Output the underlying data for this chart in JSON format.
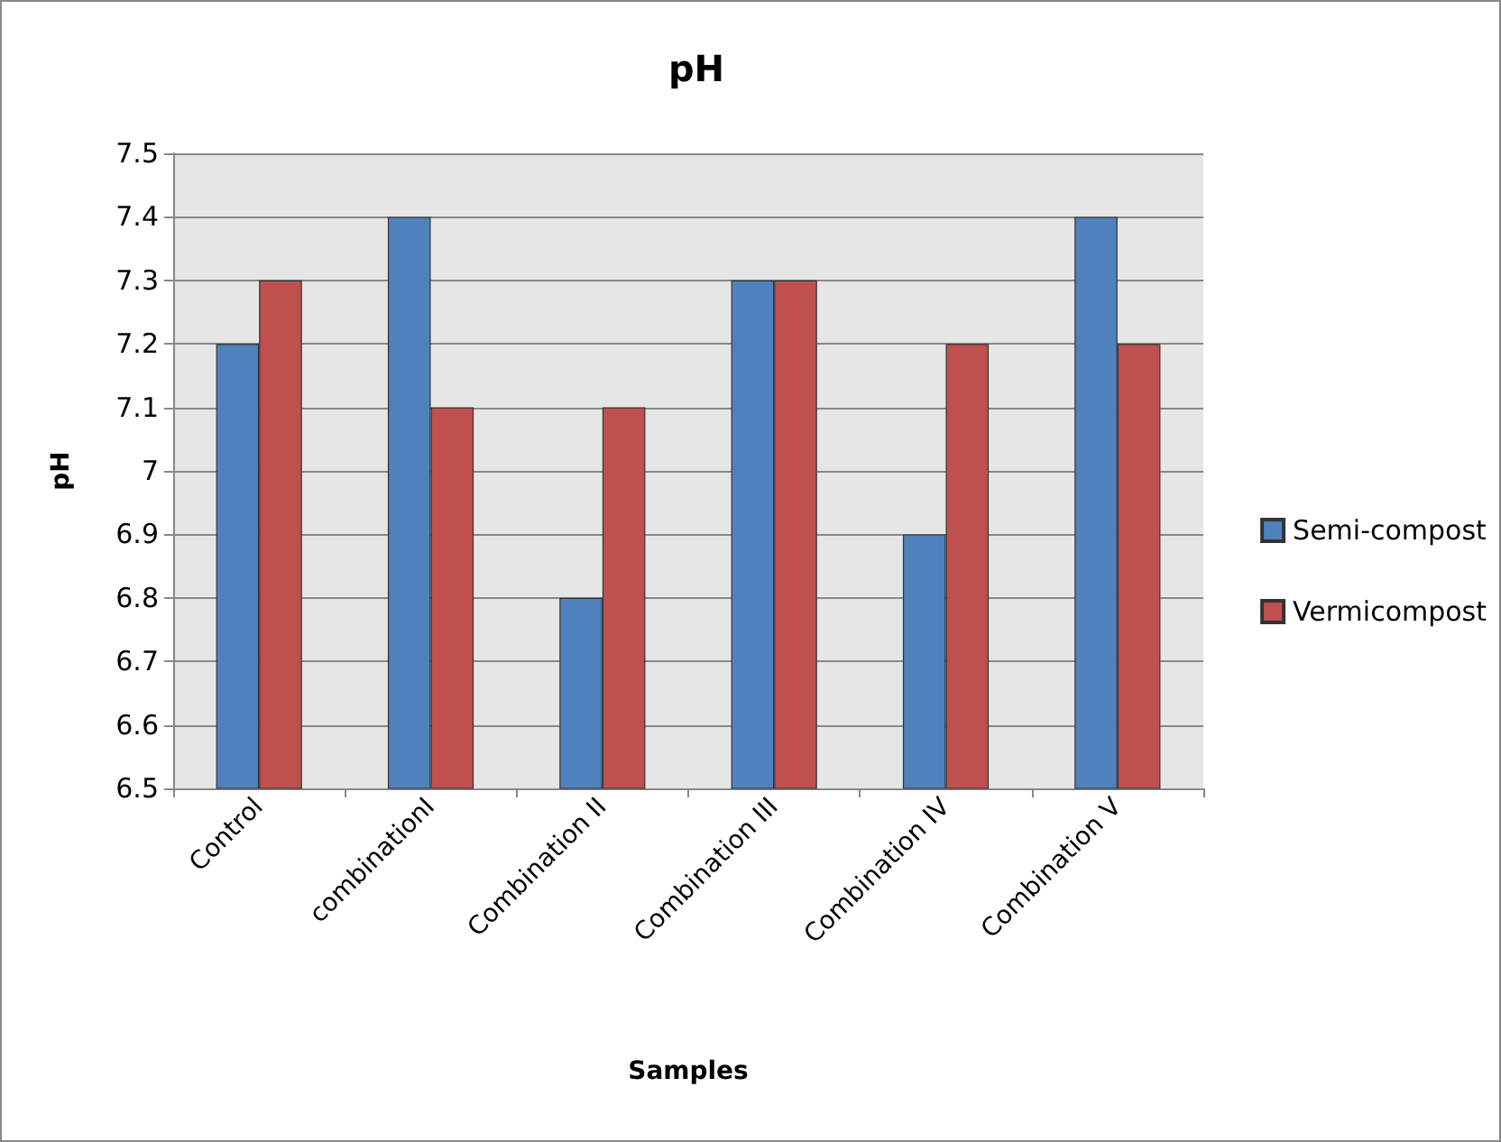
{
  "chart_data": {
    "type": "bar",
    "title": "pH",
    "xlabel": "Samples",
    "ylabel": "pH",
    "categories": [
      "Control",
      "combinationI",
      "Combination II",
      "Combination III",
      "Combination IV",
      "Combination V"
    ],
    "series": [
      {
        "name": "Semi-compost",
        "color": "#4f81bd",
        "values": [
          7.2,
          7.4,
          6.8,
          7.3,
          6.9,
          7.4
        ]
      },
      {
        "name": "Vermicompost",
        "color": "#c0504d",
        "values": [
          7.3,
          7.1,
          7.1,
          7.3,
          7.2,
          7.2
        ]
      }
    ],
    "ylim": [
      6.5,
      7.5
    ],
    "yticks": [
      6.5,
      6.6,
      6.7,
      6.8,
      6.9,
      7,
      7.1,
      7.2,
      7.3,
      7.4,
      7.5
    ],
    "grid": "y",
    "legend": "right"
  }
}
